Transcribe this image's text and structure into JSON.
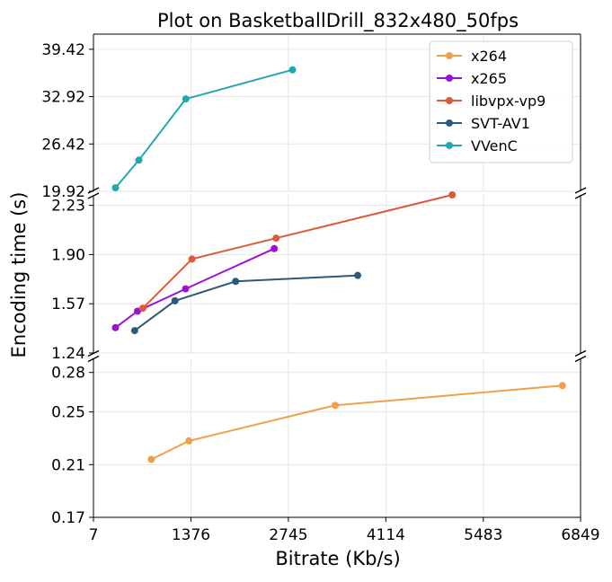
{
  "chart_data": {
    "type": "line",
    "title": "Plot on BasketballDrill_832x480_50fps",
    "xlabel": "Bitrate (Kb/s)",
    "ylabel": "Encoding time (s)",
    "xlim": [
      7,
      6849
    ],
    "x_ticks": [
      "7",
      "1376",
      "2745",
      "4114",
      "5483",
      "6849"
    ],
    "x_tick_values": [
      7,
      1376,
      2745,
      4114,
      5483,
      6849
    ],
    "grid": true,
    "legend_position": "top-right",
    "broken_axis": true,
    "panels": [
      {
        "name": "top",
        "ylim": [
          19.92,
          41.5
        ],
        "y_ticks": [
          "19.92",
          "26.42",
          "32.92",
          "39.42"
        ],
        "y_tick_values": [
          19.92,
          26.42,
          32.92,
          39.42
        ]
      },
      {
        "name": "middle",
        "ylim": [
          1.24,
          2.3
        ],
        "y_ticks": [
          "1.24",
          "1.57",
          "1.90",
          "2.23"
        ],
        "y_tick_values": [
          1.24,
          1.57,
          1.9,
          2.23
        ]
      },
      {
        "name": "bottom",
        "ylim": [
          0.17,
          0.29
        ],
        "y_ticks": [
          "0.17",
          "0.21",
          "0.25",
          "0.28"
        ],
        "y_tick_values": [
          0.17,
          0.21,
          0.25,
          0.28
        ]
      }
    ],
    "series": [
      {
        "name": "x264",
        "color": "#f0a04a",
        "panel": "bottom",
        "x": [
          820,
          1348,
          3402,
          6594
        ],
        "y": [
          0.214,
          0.228,
          0.255,
          0.27
        ]
      },
      {
        "name": "x265",
        "color": "#9b11d6",
        "panel": "middle",
        "x": [
          316,
          626,
          1301,
          2547
        ],
        "y": [
          1.41,
          1.52,
          1.67,
          1.94
        ]
      },
      {
        "name": "libvpx-vp9",
        "color": "#dc5a3c",
        "panel": "middle",
        "x": [
          700,
          1391,
          2572,
          5047
        ],
        "y": [
          1.54,
          1.87,
          2.01,
          2.3
        ]
      },
      {
        "name": "SVT-AV1",
        "color": "#2c5a7c",
        "panel": "middle",
        "x": [
          586,
          1152,
          2004,
          3719
        ],
        "y": [
          1.39,
          1.59,
          1.72,
          1.76
        ]
      },
      {
        "name": "VVenC",
        "color": "#20a8b0",
        "panel": "top",
        "x": [
          316,
          645,
          1304,
          2803
        ],
        "y": [
          20.4,
          24.2,
          32.6,
          36.6
        ]
      }
    ]
  }
}
